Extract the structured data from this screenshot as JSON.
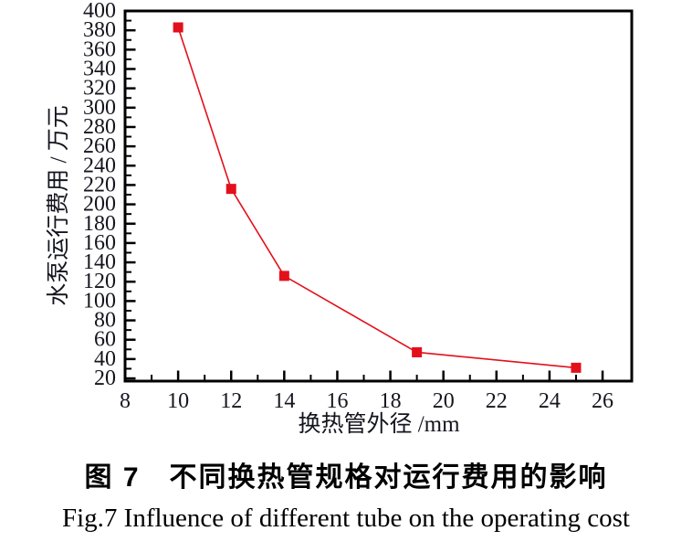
{
  "page": {
    "background": "#ffffff"
  },
  "chart_data": {
    "type": "line",
    "title": "",
    "xlabel": "换热管外径 /mm",
    "ylabel": "水泵运行费用 / 万元",
    "x": [
      10,
      12,
      14,
      19,
      25
    ],
    "y": [
      383,
      216,
      126,
      47,
      31
    ],
    "series_name": "水泵运行费用",
    "xlim": [
      8,
      27.1
    ],
    "ylim": [
      17.2,
      400
    ],
    "x_major_ticks": [
      8,
      10,
      12,
      14,
      16,
      18,
      20,
      22,
      24,
      26
    ],
    "x_minor_ticks": [
      9,
      11,
      13,
      15,
      17,
      19,
      21,
      23,
      25
    ],
    "y_major_ticks": [
      20,
      40,
      60,
      80,
      100,
      120,
      140,
      160,
      180,
      200,
      220,
      240,
      260,
      280,
      300,
      320,
      340,
      360,
      380,
      400
    ],
    "y_minor_ticks": [
      30,
      50,
      70,
      90,
      110,
      130,
      150,
      170,
      190,
      210,
      230,
      250,
      270,
      290,
      310,
      330,
      350,
      370,
      390
    ],
    "grid": false,
    "legend_position": "none",
    "marker": "square",
    "marker_size": 11,
    "line_color": "#e3101b",
    "marker_color": "#e3101b",
    "axis_color": "#000000",
    "tick_label_color": "#15151f"
  },
  "caption": {
    "line1_zh": "图 7　不同换热管规格对运行费用的影响",
    "line2_en": "Fig.7  Influence of different tube on the operating cost"
  }
}
